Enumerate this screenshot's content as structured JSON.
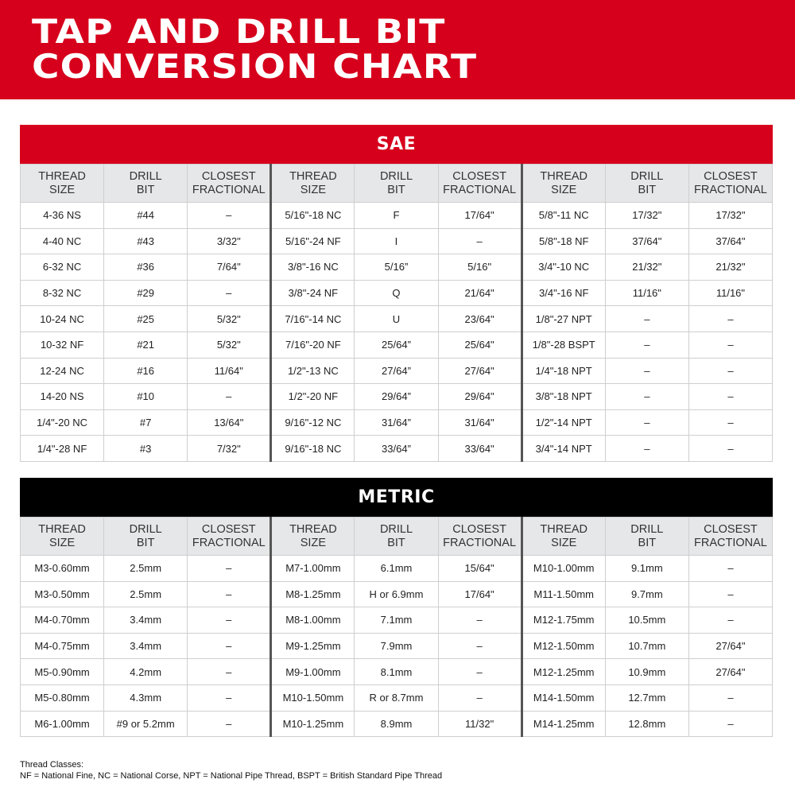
{
  "title": [
    "TAP AND DRILL BIT",
    "CONVERSION CHART"
  ],
  "colors": {
    "red": "#d6001c",
    "black": "#000000",
    "header_gray": "#e6e7e9"
  },
  "column_headers": [
    [
      "THREAD",
      "SIZE"
    ],
    [
      "DRILL",
      "BIT"
    ],
    [
      "CLOSEST",
      "FRACTIONAL"
    ],
    [
      "THREAD",
      "SIZE"
    ],
    [
      "DRILL",
      "BIT"
    ],
    [
      "CLOSEST",
      "FRACTIONAL"
    ],
    [
      "THREAD",
      "SIZE"
    ],
    [
      "DRILL",
      "BIT"
    ],
    [
      "CLOSEST",
      "FRACTIONAL"
    ]
  ],
  "sae": {
    "label": "SAE",
    "rows": [
      [
        "4-36 NS",
        "#44",
        "–",
        "5/16\"-18 NC",
        "F",
        "17/64\"",
        "5/8\"-11 NC",
        "17/32\"",
        "17/32\""
      ],
      [
        "4-40 NC",
        "#43",
        "3/32\"",
        "5/16\"-24 NF",
        "I",
        "–",
        "5/8\"-18 NF",
        "37/64\"",
        "37/64\""
      ],
      [
        "6-32 NC",
        "#36",
        "7/64\"",
        "3/8\"-16 NC",
        "5/16”",
        "5/16\"",
        "3/4\"-10 NC",
        "21/32\"",
        "21/32\""
      ],
      [
        "8-32 NC",
        "#29",
        "–",
        "3/8\"-24 NF",
        "Q",
        "21/64\"",
        "3/4\"-16 NF",
        "11/16\"",
        "11/16\""
      ],
      [
        "10-24 NC",
        "#25",
        "5/32\"",
        "7/16\"-14 NC",
        "U",
        "23/64\"",
        "1/8\"-27 NPT",
        "–",
        "–"
      ],
      [
        "10-32 NF",
        "#21",
        "5/32\"",
        "7/16\"-20 NF",
        "25/64”",
        "25/64\"",
        "1/8\"-28 BSPT",
        "–",
        "–"
      ],
      [
        "12-24 NC",
        "#16",
        "11/64\"",
        "1/2\"-13 NC",
        "27/64”",
        "27/64\"",
        "1/4\"-18 NPT",
        "–",
        "–"
      ],
      [
        "14-20 NS",
        "#10",
        "–",
        "1/2\"-20 NF",
        "29/64”",
        "29/64\"",
        "3/8\"-18 NPT",
        "–",
        "–"
      ],
      [
        "1/4\"-20 NC",
        "#7",
        "13/64\"",
        "9/16\"-12 NC",
        "31/64”",
        "31/64\"",
        "1/2\"-14 NPT",
        "–",
        "–"
      ],
      [
        "1/4\"-28 NF",
        "#3",
        "7/32\"",
        "9/16\"-18 NC",
        "33/64”",
        "33/64\"",
        "3/4\"-14 NPT",
        "–",
        "–"
      ]
    ]
  },
  "metric": {
    "label": "METRIC",
    "rows": [
      [
        "M3-0.60mm",
        "2.5mm",
        "–",
        "M7-1.00mm",
        "6.1mm",
        "15/64\"",
        "M10-1.00mm",
        "9.1mm",
        "–"
      ],
      [
        "M3-0.50mm",
        "2.5mm",
        "–",
        "M8-1.25mm",
        "H or 6.9mm",
        "17/64\"",
        "M11-1.50mm",
        "9.7mm",
        "–"
      ],
      [
        "M4-0.70mm",
        "3.4mm",
        "–",
        "M8-1.00mm",
        "7.1mm",
        "–",
        "M12-1.75mm",
        "10.5mm",
        "–"
      ],
      [
        "M4-0.75mm",
        "3.4mm",
        "–",
        "M9-1.25mm",
        "7.9mm",
        "–",
        "M12-1.50mm",
        "10.7mm",
        "27/64\""
      ],
      [
        "M5-0.90mm",
        "4.2mm",
        "–",
        "M9-1.00mm",
        "8.1mm",
        "–",
        "M12-1.25mm",
        "10.9mm",
        "27/64\""
      ],
      [
        "M5-0.80mm",
        "4.3mm",
        "–",
        "M10-1.50mm",
        "R or 8.7mm",
        "–",
        "M14-1.50mm",
        "12.7mm",
        "–"
      ],
      [
        "M6-1.00mm",
        "#9 or 5.2mm",
        "–",
        "M10-1.25mm",
        "8.9mm",
        "11/32\"",
        "M14-1.25mm",
        "12.8mm",
        "–"
      ]
    ]
  },
  "footer": {
    "heading": "Thread Classes:",
    "text": "NF = National Fine, NC = National Corse, NPT = National Pipe Thread, BSPT = British Standard Pipe Thread"
  }
}
